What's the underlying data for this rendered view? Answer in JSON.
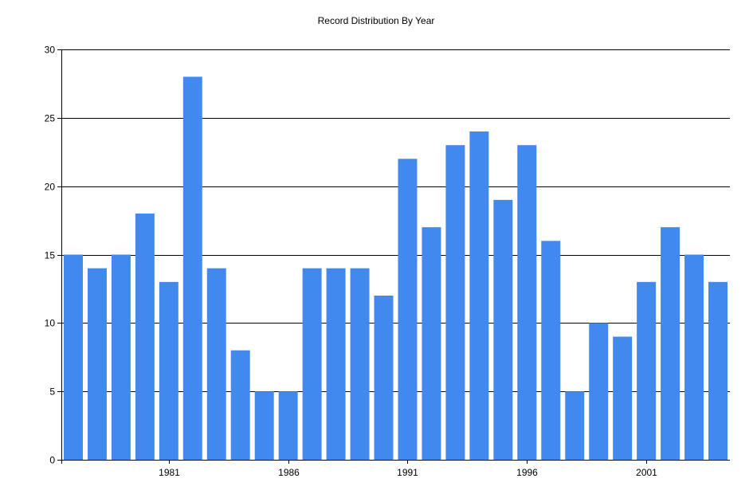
{
  "chart_data": {
    "type": "bar",
    "title": "Record Distribution By Year",
    "xlabel": "",
    "ylabel": "",
    "x": [
      1977,
      1978,
      1979,
      1980,
      1981,
      1982,
      1983,
      1984,
      1985,
      1986,
      1987,
      1988,
      1989,
      1990,
      1991,
      1992,
      1993,
      1994,
      1995,
      1996,
      1997,
      1998,
      1999,
      2000,
      2001,
      2002,
      2003,
      2004
    ],
    "values": [
      15,
      14,
      15,
      18,
      13,
      28,
      14,
      8,
      5,
      5,
      14,
      14,
      14,
      12,
      22,
      17,
      23,
      24,
      19,
      23,
      16,
      5,
      10,
      9,
      13,
      17,
      15,
      13
    ],
    "x_ticks": [
      "1981",
      "1986",
      "1991",
      "1996",
      "2001"
    ],
    "y_ticks": [
      "0",
      "5",
      "10",
      "15",
      "20",
      "25",
      "30"
    ],
    "ylim": [
      0,
      30
    ],
    "grid": true,
    "colors": {
      "bar": "#4189EE",
      "grid": "#000000",
      "axis": "#000000"
    }
  }
}
